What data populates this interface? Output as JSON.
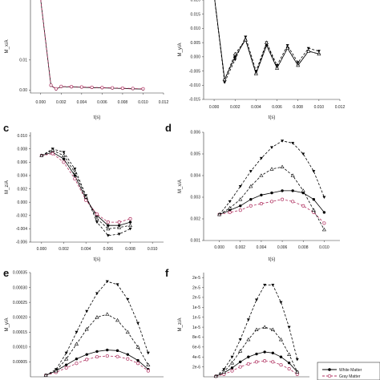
{
  "figure": {
    "legend": {
      "entries": [
        {
          "name": "White Matter",
          "marker": "circle-filled",
          "dash": "solid",
          "color": "#000000"
        },
        {
          "name": "Gray Matter",
          "marker": "circle-open",
          "dash": "dashed",
          "color": "#b03060"
        }
      ]
    }
  },
  "chart_data": [
    {
      "panel": "",
      "type": "line",
      "xlabel": "t(s)",
      "ylabel": "M_x/A",
      "xlim": [
        -0.001,
        0.012
      ],
      "ylim": [
        -0.001,
        0.03
      ],
      "xticks": [
        "0.000",
        "0.002",
        "0.004",
        "0.006",
        "0.008",
        "0.010",
        "0.012"
      ],
      "yticks": [
        "0.00",
        "0.01"
      ],
      "ytick_values": [
        0.0,
        0.01
      ],
      "series": [
        {
          "marker": "circle-filled",
          "dash": "solid",
          "color": "#000000",
          "x": [
            0.0,
            0.001,
            0.0015,
            0.002,
            0.003,
            0.004,
            0.005,
            0.006,
            0.007,
            0.008,
            0.009,
            0.01
          ],
          "y": [
            0.03,
            0.0015,
            0.0003,
            0.0011,
            0.001,
            0.0009,
            0.0008,
            0.0007,
            0.0006,
            0.0005,
            0.0004,
            0.0003
          ]
        },
        {
          "marker": "circle-open",
          "dash": "dashed",
          "color": "#b03060",
          "x": [
            0.0,
            0.001,
            0.0015,
            0.002,
            0.003,
            0.004,
            0.005,
            0.006,
            0.007,
            0.008,
            0.009,
            0.01
          ],
          "y": [
            0.03,
            0.0016,
            0.0004,
            0.0012,
            0.0011,
            0.001,
            0.0009,
            0.0008,
            0.0007,
            0.0006,
            0.0005,
            0.0004
          ]
        }
      ]
    },
    {
      "panel": "",
      "type": "line",
      "xlabel": "t(s)",
      "ylabel": "M_y/A",
      "xlim": [
        -0.001,
        0.012
      ],
      "ylim": [
        -0.015,
        0.02
      ],
      "xticks": [
        "0.000",
        "0.002",
        "0.004",
        "0.006",
        "0.008",
        "0.010",
        "0.012"
      ],
      "yticks": [
        "0.020",
        "0.015",
        "0.010",
        "0.005",
        "0.000",
        "-0.005",
        "-0.010",
        "-0.015"
      ],
      "ytick_values": [
        0.02,
        0.015,
        0.01,
        0.005,
        0.0,
        -0.005,
        -0.01,
        -0.015
      ],
      "series": [
        {
          "marker": "circle-filled",
          "dash": "solid",
          "color": "#000000",
          "x": [
            0.0,
            0.001,
            0.002,
            0.003,
            0.004,
            0.005,
            0.006,
            0.007,
            0.008,
            0.009,
            0.01
          ],
          "y": [
            0.022,
            -0.008,
            0.0,
            0.006,
            -0.006,
            0.004,
            -0.004,
            0.003,
            -0.003,
            0.002,
            0.001
          ]
        },
        {
          "marker": "triangle-down",
          "dash": "dashed",
          "color": "#000000",
          "x": [
            0.0,
            0.001,
            0.002,
            0.003,
            0.004,
            0.005,
            0.006,
            0.007,
            0.008,
            0.009,
            0.01
          ],
          "y": [
            0.022,
            -0.009,
            -0.001,
            0.007,
            -0.005,
            0.005,
            -0.003,
            0.004,
            -0.002,
            0.003,
            0.002
          ]
        },
        {
          "marker": "triangle-up",
          "dash": "dashed",
          "color": "#000000",
          "x": [
            0.0,
            0.001,
            0.002,
            0.003,
            0.004,
            0.005,
            0.006,
            0.007,
            0.008,
            0.009,
            0.01
          ],
          "y": [
            0.022,
            -0.008,
            0.001,
            0.006,
            -0.006,
            0.005,
            -0.004,
            0.003,
            -0.003,
            0.002,
            0.001
          ]
        }
      ]
    },
    {
      "panel": "c",
      "type": "line",
      "xlabel": "t(s)",
      "ylabel": "M_z/A",
      "xlim": [
        -0.001,
        0.011
      ],
      "ylim": [
        -0.006,
        0.0105
      ],
      "xticks": [
        "0.000",
        "0.002",
        "0.004",
        "0.006",
        "0.008",
        "0.010"
      ],
      "yticks": [
        "0.010",
        "0.008",
        "0.006",
        "0.004",
        "0.002",
        "0.000",
        "-0.002",
        "-0.004",
        "-0.006"
      ],
      "ytick_values": [
        0.01,
        0.008,
        0.006,
        0.004,
        0.002,
        0.0,
        -0.002,
        -0.004,
        -0.006
      ],
      "series": [
        {
          "marker": "circle-filled",
          "dash": "solid",
          "color": "#000000",
          "x": [
            0.0,
            0.001,
            0.002,
            0.003,
            0.004,
            0.005,
            0.006,
            0.007,
            0.008
          ],
          "y": [
            0.007,
            0.0075,
            0.0065,
            0.004,
            0.0005,
            -0.002,
            -0.0035,
            -0.0035,
            -0.003
          ]
        },
        {
          "marker": "circle-open",
          "dash": "dashed",
          "color": "#b03060",
          "x": [
            0.0,
            0.001,
            0.002,
            0.003,
            0.004,
            0.005,
            0.006,
            0.007,
            0.008
          ],
          "y": [
            0.007,
            0.0073,
            0.006,
            0.0035,
            0.0003,
            -0.0018,
            -0.003,
            -0.003,
            -0.0025
          ]
        },
        {
          "marker": "triangle-down",
          "dash": "dashed",
          "color": "#000000",
          "x": [
            0.0,
            0.001,
            0.002,
            0.003,
            0.004,
            0.005,
            0.006,
            0.007,
            0.008
          ],
          "y": [
            0.007,
            0.008,
            0.0075,
            0.005,
            0.001,
            -0.003,
            -0.005,
            -0.0048,
            -0.004
          ]
        },
        {
          "marker": "triangle-up",
          "dash": "dashed",
          "color": "#000000",
          "x": [
            0.0,
            0.001,
            0.002,
            0.003,
            0.004,
            0.005,
            0.006,
            0.007,
            0.008
          ],
          "y": [
            0.007,
            0.0078,
            0.007,
            0.0045,
            0.0008,
            -0.0025,
            -0.004,
            -0.0038,
            -0.0035
          ]
        }
      ]
    },
    {
      "panel": "d",
      "type": "line",
      "xlabel": "t(s)",
      "ylabel": "M_x/A",
      "xlim": [
        -0.0015,
        0.0115
      ],
      "ylim": [
        0.001,
        0.006
      ],
      "xticks": [
        "0.000",
        "0.002",
        "0.004",
        "0.006",
        "0.008",
        "0.010"
      ],
      "yticks": [
        "0.006",
        "0.005",
        "0.004",
        "0.003",
        "0.002",
        "0.001"
      ],
      "ytick_values": [
        0.006,
        0.005,
        0.004,
        0.003,
        0.002,
        0.001
      ],
      "series": [
        {
          "marker": "circle-filled",
          "dash": "solid",
          "color": "#000000",
          "x": [
            0.0,
            0.001,
            0.002,
            0.003,
            0.004,
            0.005,
            0.006,
            0.007,
            0.008,
            0.009,
            0.01
          ],
          "y": [
            0.0022,
            0.0024,
            0.0026,
            0.0029,
            0.0031,
            0.0032,
            0.0033,
            0.0033,
            0.0032,
            0.0029,
            0.0023
          ]
        },
        {
          "marker": "circle-open",
          "dash": "dashed",
          "color": "#b03060",
          "x": [
            0.0,
            0.001,
            0.002,
            0.003,
            0.004,
            0.005,
            0.006,
            0.007,
            0.008,
            0.009,
            0.01
          ],
          "y": [
            0.0022,
            0.0023,
            0.0024,
            0.0026,
            0.0027,
            0.0028,
            0.0029,
            0.0028,
            0.0026,
            0.0023,
            0.0018
          ]
        },
        {
          "marker": "triangle-down",
          "dash": "dashed",
          "color": "#000000",
          "x": [
            0.0,
            0.001,
            0.002,
            0.003,
            0.004,
            0.005,
            0.006,
            0.007,
            0.008,
            0.009,
            0.01
          ],
          "y": [
            0.0022,
            0.0028,
            0.0035,
            0.0042,
            0.0048,
            0.0053,
            0.0056,
            0.0055,
            0.005,
            0.0042,
            0.003
          ]
        },
        {
          "marker": "triangle-up",
          "dash": "dashed",
          "color": "#000000",
          "x": [
            0.0,
            0.001,
            0.002,
            0.003,
            0.004,
            0.005,
            0.006,
            0.007,
            0.008,
            0.009,
            0.01
          ],
          "y": [
            0.0022,
            0.0025,
            0.0029,
            0.0035,
            0.004,
            0.0043,
            0.0044,
            0.004,
            0.0033,
            0.0024,
            0.0015
          ]
        }
      ]
    },
    {
      "panel": "e",
      "type": "line",
      "xlabel": "",
      "ylabel": "M_y/A",
      "xlim": [
        -0.0015,
        0.0115
      ],
      "ylim": [
        0.0,
        0.00035
      ],
      "xticks": [],
      "yticks": [
        "0.00035",
        "0.00030",
        "0.00025",
        "0.00020",
        "0.00015",
        "0.00010",
        "0.00005"
      ],
      "ytick_values": [
        0.00035,
        0.0003,
        0.00025,
        0.0002,
        0.00015,
        0.0001,
        5e-05
      ],
      "series": [
        {
          "marker": "circle-filled",
          "dash": "solid",
          "color": "#000000",
          "x": [
            0.0,
            0.001,
            0.002,
            0.003,
            0.004,
            0.005,
            0.006,
            0.007,
            0.008,
            0.009,
            0.01
          ],
          "y": [
            5e-06,
            2e-05,
            4e-05,
            6e-05,
            7.5e-05,
            8.5e-05,
            9e-05,
            8.8e-05,
            7.5e-05,
            5.5e-05,
            2.5e-05
          ]
        },
        {
          "marker": "circle-open",
          "dash": "dashed",
          "color": "#b03060",
          "x": [
            0.0,
            0.001,
            0.002,
            0.003,
            0.004,
            0.005,
            0.006,
            0.007,
            0.008,
            0.009,
            0.01
          ],
          "y": [
            5e-06,
            1.5e-05,
            3e-05,
            4.5e-05,
            5.8e-05,
            6.7e-05,
            7e-05,
            6.8e-05,
            6e-05,
            4.5e-05,
            2e-05
          ]
        },
        {
          "marker": "triangle-down",
          "dash": "dashed",
          "color": "#000000",
          "x": [
            0.0,
            0.001,
            0.002,
            0.003,
            0.004,
            0.005,
            0.006,
            0.007,
            0.008,
            0.009,
            0.01
          ],
          "y": [
            5e-06,
            2.5e-05,
            8e-05,
            0.00015,
            0.00022,
            0.00028,
            0.00032,
            0.00031,
            0.00026,
            0.00018,
            8e-05
          ]
        },
        {
          "marker": "triangle-up",
          "dash": "dashed",
          "color": "#000000",
          "x": [
            0.0,
            0.001,
            0.002,
            0.003,
            0.004,
            0.005,
            0.006,
            0.007,
            0.008,
            0.009,
            0.01
          ],
          "y": [
            5e-06,
            2e-05,
            6e-05,
            0.00011,
            0.00016,
            0.0002,
            0.00021,
            0.00019,
            0.00015,
            0.0001,
            4e-05
          ]
        }
      ]
    },
    {
      "panel": "f",
      "type": "line",
      "xlabel": "",
      "ylabel": "M_z/A",
      "xlim": [
        -0.0015,
        0.0115
      ],
      "ylim": [
        0.0,
        2.1e-05
      ],
      "xticks": [],
      "yticks": [
        "2e-5",
        "2e-5",
        "2e-5",
        "1e-5",
        "1e-5",
        "1e-5",
        "8e-6",
        "6e-6",
        "4e-6",
        "2e-6"
      ],
      "ytick_values": [
        2e-05,
        1.8e-05,
        1.6e-05,
        1.4e-05,
        1.2e-05,
        1e-05,
        8e-06,
        6e-06,
        4e-06,
        2e-06
      ],
      "series": [
        {
          "marker": "circle-filled",
          "dash": "solid",
          "color": "#000000",
          "x": [
            0.0,
            0.001,
            0.002,
            0.003,
            0.004,
            0.005,
            0.006,
            0.007,
            0.008,
            0.009,
            0.01
          ],
          "y": [
            1e-07,
            8e-07,
            1.8e-06,
            3e-06,
            4e-06,
            4.6e-06,
            5e-06,
            4.8e-06,
            4e-06,
            2.8e-06,
            1e-06
          ]
        },
        {
          "marker": "circle-open",
          "dash": "dashed",
          "color": "#b03060",
          "x": [
            0.0,
            0.001,
            0.002,
            0.003,
            0.004,
            0.005,
            0.006,
            0.007,
            0.008,
            0.009,
            0.01
          ],
          "y": [
            1e-07,
            5e-07,
            1.2e-06,
            2e-06,
            2.6e-06,
            3e-06,
            3.2e-06,
            3e-06,
            2.4e-06,
            1.6e-06,
            5e-07
          ]
        },
        {
          "marker": "triangle-down",
          "dash": "dashed",
          "color": "#000000",
          "x": [
            0.0,
            0.001,
            0.002,
            0.003,
            0.004,
            0.005,
            0.006,
            0.007,
            0.008,
            0.009,
            0.01
          ],
          "y": [
            1e-07,
            1.5e-06,
            4e-06,
            7.5e-06,
            1.15e-05,
            1.55e-05,
            1.85e-05,
            1.85e-05,
            1.5e-05,
            1e-05,
            3.5e-06
          ]
        },
        {
          "marker": "triangle-up",
          "dash": "dashed",
          "color": "#000000",
          "x": [
            0.0,
            0.001,
            0.002,
            0.003,
            0.004,
            0.005,
            0.006,
            0.007,
            0.008,
            0.009,
            0.01
          ],
          "y": [
            1e-07,
            1e-06,
            2.8e-06,
            5.2e-06,
            7.5e-06,
            9.5e-06,
            1e-05,
            9.5e-06,
            7.5e-06,
            4.5e-06,
            1e-06
          ]
        }
      ]
    }
  ]
}
